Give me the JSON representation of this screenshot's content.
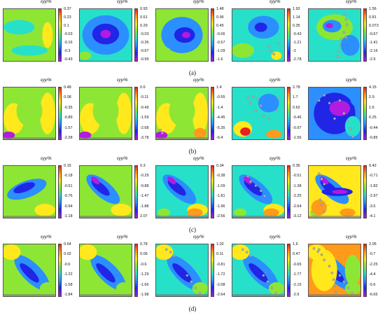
{
  "colorbar_unit": "εyy/%",
  "colors": {
    "red": "#e8211b",
    "orange": "#ff9a1a",
    "yellow": "#ffe81c",
    "green": "#8ee634",
    "cyan": "#27e0c9",
    "blue": "#2b8fff",
    "darkblue": "#2125e6",
    "purple": "#b21be0",
    "speckle": "#b0b0b0"
  },
  "rows": [
    {
      "label": "(a)",
      "panels": [
        {
          "ticks": [
            "0.37",
            "0.23",
            "0.1",
            "-0.03",
            "-0.16",
            "-0.3",
            "-0.43"
          ]
        },
        {
          "ticks": [
            "0.93",
            "0.61",
            "0.29",
            "-0.03",
            "-0.35",
            "-0.67",
            "-0.99"
          ]
        },
        {
          "ticks": [
            "1.48",
            "0.96",
            "0.45",
            "-0.06",
            "-0.57",
            "-1.09",
            "-1.6"
          ]
        },
        {
          "ticks": [
            "1.92",
            "1.14",
            "0.35",
            "-0.43",
            "-1.21",
            "-2",
            "-2.78"
          ]
        },
        {
          "ticks": [
            "1.56",
            "0.81",
            "0.073",
            "-0.67",
            "-1.41",
            "-2.16",
            "-2.9"
          ]
        }
      ]
    },
    {
      "label": "(b)",
      "panels": [
        {
          "ticks": [
            "0.48",
            "0.08",
            "-0.35",
            "-0.89",
            "-1.57",
            "-2.28"
          ]
        },
        {
          "ticks": [
            "0.6",
            "-0.11",
            "-0.49",
            "-1.59",
            "-2.68",
            "-3.78"
          ]
        },
        {
          "ticks": [
            "1.4",
            "-0.55",
            "-1.4",
            "-4.45",
            "-5.35",
            "-6.4"
          ]
        },
        {
          "ticks": [
            "2.78",
            "1.7",
            "0.62",
            "-0.46",
            "-0.97",
            "-1.56"
          ]
        },
        {
          "ticks": [
            "4.15",
            "2.9",
            "1.6",
            "0.25",
            "-0.44",
            "-0.85"
          ]
        }
      ]
    },
    {
      "label": "(c)",
      "panels": [
        {
          "ticks": [
            "0.15",
            "-0.18",
            "-0.51",
            "-0.76",
            "-0.94",
            "-1.18"
          ]
        },
        {
          "ticks": [
            "0.3",
            "-0.29",
            "-0.88",
            "-1.47",
            "-1.88",
            "2.07"
          ]
        },
        {
          "ticks": [
            "0.34",
            "-0.38",
            "-1.09",
            "-1.81",
            "-1.96",
            "-2.56"
          ]
        },
        {
          "ticks": [
            "0.36",
            "-0.51",
            "-1.38",
            "-2.25",
            "-2.64",
            "-3.12"
          ]
        },
        {
          "ticks": [
            "0.42",
            "-0.71",
            "-1.82",
            "-2.97",
            "-3.5",
            "-4.1"
          ]
        }
      ]
    },
    {
      "label": "(d)",
      "panels": [
        {
          "ticks": [
            "0.64",
            "0.02",
            "-0.6",
            "-1.22",
            "-1.58",
            "-1.84"
          ]
        },
        {
          "ticks": [
            "0.78",
            "0.09",
            "-0.6",
            "-1.29",
            "-1.66",
            "-1.98"
          ]
        },
        {
          "ticks": [
            "1.02",
            "0.11",
            "-0.81",
            "-1.72",
            "-2.08",
            "-2.64"
          ]
        },
        {
          "ticks": [
            "1.6",
            "0.47",
            "-0.65",
            "-1.77",
            "-2.15",
            "-2.9"
          ]
        },
        {
          "ticks": [
            "2.05",
            "-0.7",
            "-2.25",
            "-4.4",
            "-5.6",
            "-6.65"
          ]
        }
      ]
    }
  ]
}
